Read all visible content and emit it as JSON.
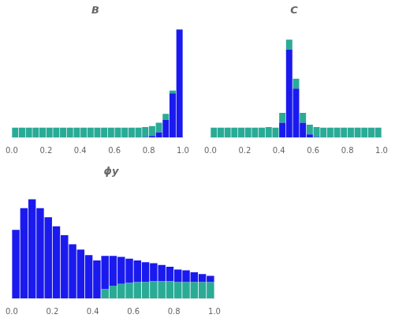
{
  "chart_data": [
    {
      "type": "bar",
      "title": "B",
      "stacked": true,
      "grid": false,
      "tick_labels": "x",
      "bins": [
        0,
        0.04,
        0.08,
        0.12,
        0.16,
        0.2,
        0.24,
        0.28,
        0.32,
        0.36,
        0.4,
        0.44,
        0.48,
        0.52,
        0.56,
        0.6,
        0.64,
        0.68,
        0.72,
        0.76,
        0.8,
        0.84,
        0.88,
        0.92,
        0.96,
        1.0
      ],
      "series": [
        {
          "color": "#2aab96",
          "values": [
            1.0,
            1.0,
            1.0,
            1.0,
            1.0,
            1.0,
            1.0,
            1.0,
            1.0,
            1.0,
            1.0,
            1.0,
            1.0,
            1.0,
            1.0,
            1.0,
            1.0,
            1.0,
            1.0,
            1.0,
            1.0,
            1.0,
            0.6,
            0.3,
            0.08
          ]
        },
        {
          "color": "#1a1aee",
          "values": [
            0.0,
            0.0,
            0.0,
            0.0,
            0.0,
            0.0,
            0.0,
            0.0,
            0.0,
            0.0,
            0.0,
            0.0,
            0.0,
            0.0,
            0.0,
            0.0,
            0.0,
            0.0,
            0.0,
            0.05,
            0.15,
            0.5,
            1.8,
            4.5,
            11.0
          ]
        }
      ],
      "xlim": [
        0,
        1
      ],
      "xticks": [
        {
          "value": 0,
          "label": "0.0"
        },
        0.2,
        0.4,
        0.6,
        0.8,
        {
          "value": 1,
          "label": "1.0"
        }
      ],
      "ylim": [
        0,
        12
      ]
    },
    {
      "type": "bar",
      "title": "C",
      "stacked": true,
      "grid": false,
      "tick_labels": "x",
      "bins": [
        0,
        0.04,
        0.08,
        0.12,
        0.16,
        0.2,
        0.24,
        0.28,
        0.32,
        0.36,
        0.4,
        0.44,
        0.48,
        0.52,
        0.56,
        0.6,
        0.64,
        0.68,
        0.72,
        0.76,
        0.8,
        0.84,
        0.88,
        0.92,
        0.96,
        1.0
      ],
      "series": [
        {
          "color": "#2aab96",
          "values": [
            1.0,
            1.0,
            1.0,
            1.0,
            1.0,
            1.0,
            1.0,
            1.0,
            1.05,
            1.0,
            1.0,
            1.0,
            1.0,
            1.0,
            1.0,
            1.0,
            1.0,
            1.0,
            1.0,
            1.0,
            1.0,
            1.0,
            1.0,
            1.0,
            1.0
          ]
        },
        {
          "color": "#1a1aee",
          "values": [
            0.0,
            0.0,
            0.0,
            0.0,
            0.0,
            0.0,
            0.0,
            0.0,
            0.0,
            0.0,
            1.5,
            9.0,
            5.0,
            1.5,
            0.3,
            0.05,
            0.0,
            0.0,
            0.0,
            0.0,
            0.0,
            0.0,
            0.0,
            0.0,
            0.0
          ]
        }
      ],
      "xlim": [
        0,
        1
      ],
      "xticks": [
        {
          "value": 0,
          "label": "0.0"
        },
        0.2,
        0.4,
        0.6,
        0.8,
        {
          "value": 1,
          "label": "1.0"
        }
      ],
      "ylim": [
        0,
        12
      ]
    },
    {
      "type": "bar",
      "title": "ϕy",
      "stacked": true,
      "grid": false,
      "tick_labels": "x",
      "bins": [
        0,
        0.04,
        0.08,
        0.12,
        0.16,
        0.2,
        0.24,
        0.28,
        0.32,
        0.36,
        0.4,
        0.44,
        0.48,
        0.52,
        0.56,
        0.6,
        0.64,
        0.68,
        0.72,
        0.76,
        0.8,
        0.84,
        0.88,
        0.92,
        0.96,
        1.0
      ],
      "series": [
        {
          "color": "#1a1aee",
          "values": [
            3.8,
            5.0,
            5.5,
            5.0,
            4.5,
            4.0,
            3.5,
            3.0,
            2.7,
            2.4,
            2.1,
            1.85,
            1.65,
            1.5,
            1.35,
            1.2,
            1.1,
            1.0,
            0.9,
            0.8,
            0.7,
            0.65,
            0.55,
            0.45,
            0.35
          ]
        },
        {
          "color": "#2aab96",
          "values": [
            0.0,
            0.0,
            0.0,
            0.0,
            0.0,
            0.0,
            0.0,
            0.0,
            0.0,
            0.0,
            0.0,
            0.5,
            0.7,
            0.8,
            0.85,
            0.9,
            0.9,
            0.95,
            0.95,
            0.95,
            0.9,
            0.9,
            0.9,
            0.9,
            0.9
          ]
        }
      ],
      "xlim": [
        0,
        1
      ],
      "xticks": [
        {
          "value": 0,
          "label": "0.0"
        },
        0.2,
        0.4,
        0.6,
        0.8,
        {
          "value": 1,
          "label": "1.0"
        }
      ],
      "ylim": [
        0,
        6.5
      ]
    }
  ]
}
